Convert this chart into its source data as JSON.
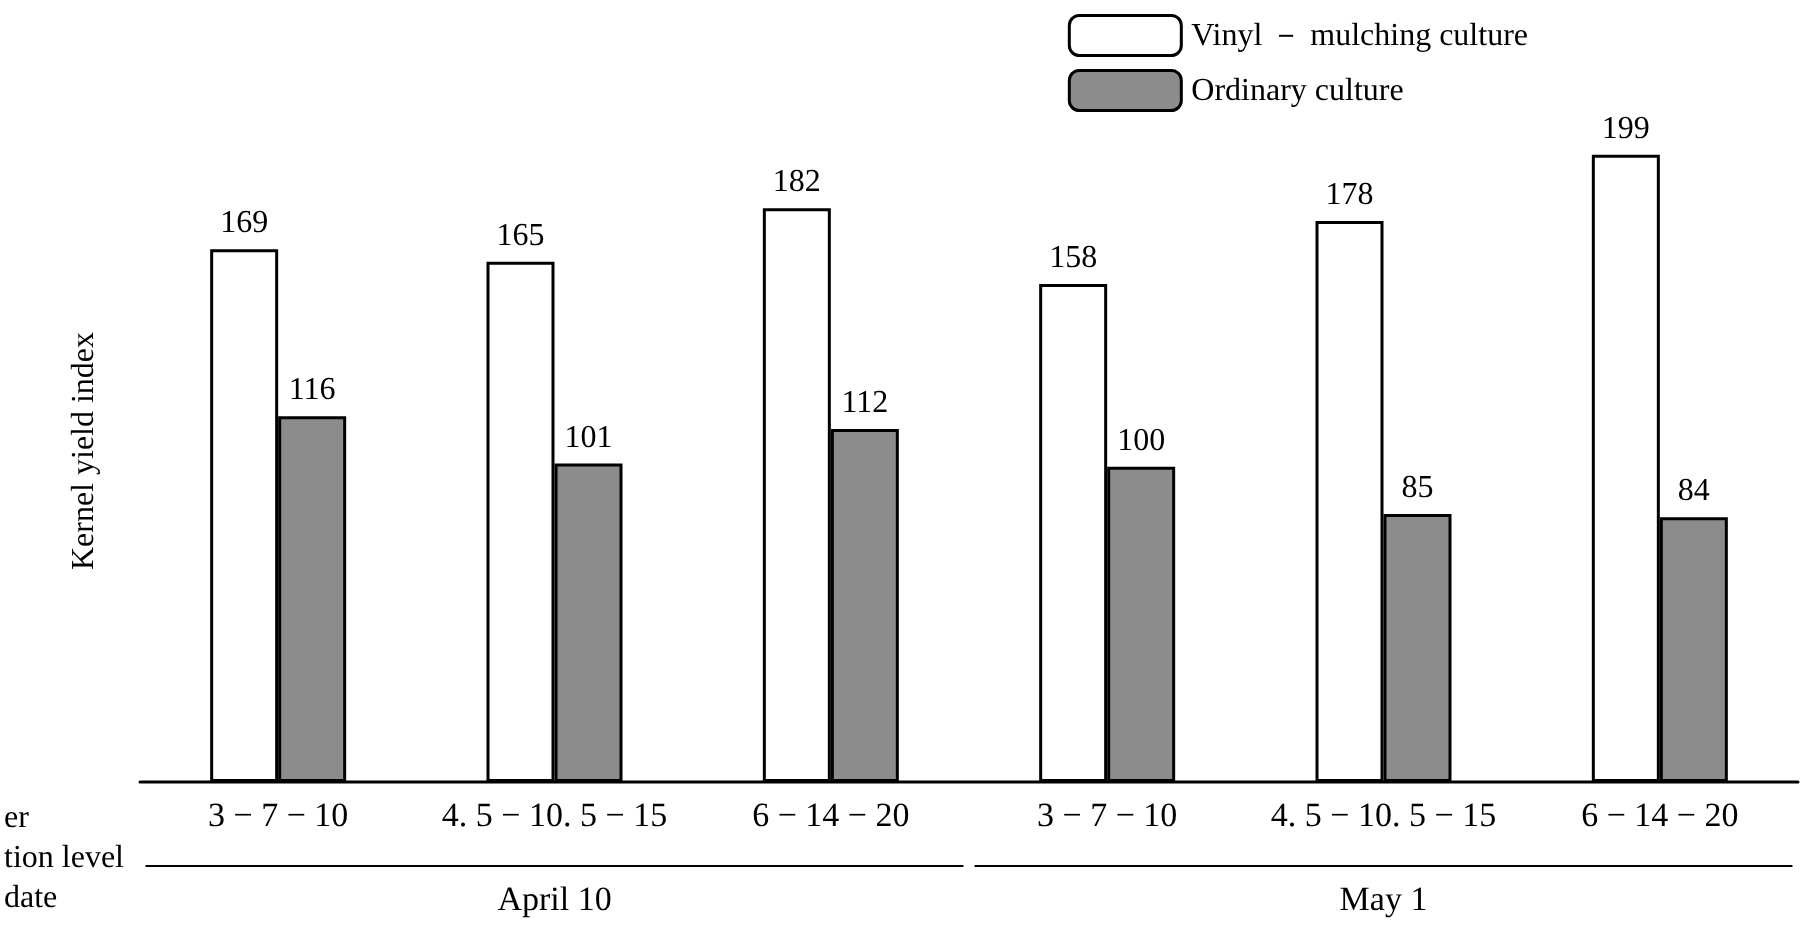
{
  "chart_data": {
    "type": "bar",
    "ylabel": "Kernel yield index",
    "xlabel": "er\ntion level\ndate",
    "categories": [
      "3 − 7 − 10",
      "4. 5 − 10. 5 − 15",
      "6 − 14 − 20",
      "3 − 7 − 10",
      "4. 5 − 10. 5 − 15",
      "6 − 14 − 20"
    ],
    "series": [
      {
        "name": "Vinyl － mulching culture",
        "color": "#ffffff",
        "values": [
          169,
          165,
          182,
          158,
          178,
          199
        ]
      },
      {
        "name": "Ordinary culture",
        "color": "#8c8c8c",
        "values": [
          116,
          101,
          112,
          100,
          85,
          84
        ]
      }
    ],
    "annotations": [
      "April 10",
      "May 1"
    ],
    "data_labels": true,
    "legend": "top right",
    "grid": false
  }
}
